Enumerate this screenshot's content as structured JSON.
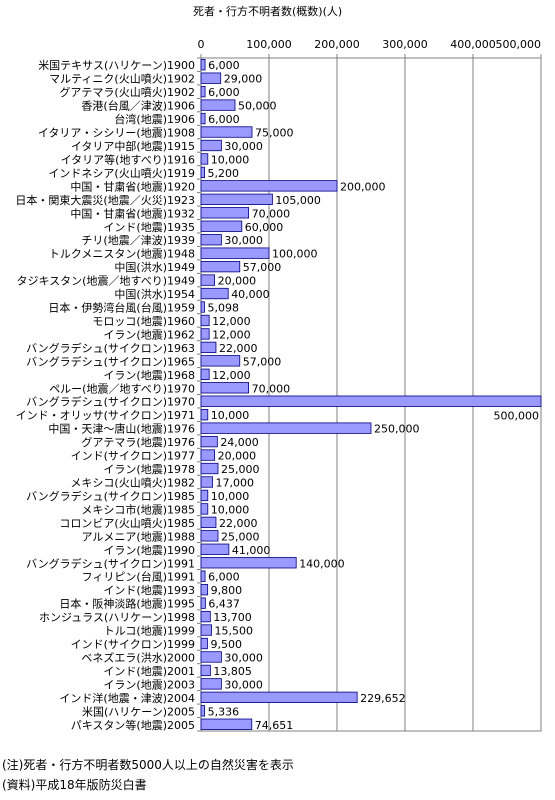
{
  "chart_data": {
    "type": "bar",
    "orientation": "horizontal",
    "title": "死者・行方不明者数(概数)(人)",
    "xlim": [
      0,
      500000
    ],
    "xticks": [
      0,
      100000,
      200000,
      300000,
      400000,
      500000
    ],
    "xtick_labels": [
      "0",
      "100,000",
      "200,000",
      "300,000",
      "400,000",
      "500,000"
    ],
    "grid": "vertical",
    "bar_color": "#9999ff",
    "categories": [
      "米国テキサス(ハリケーン)1900",
      "マルティニク(火山噴火)1902",
      "グアテマラ(火山噴火)1902",
      "香港(台風／津波)1906",
      "台湾(地震)1906",
      "イタリア・シシリー(地震)1908",
      "イタリア中部(地震)1915",
      "イタリア等(地すべり)1916",
      "インドネシア(火山噴火)1919",
      "中国・甘粛省(地震)1920",
      "日本・関東大震災(地震／火災)1923",
      "中国・甘粛省(地震)1932",
      "インド(地震)1935",
      "チリ(地震／津波)1939",
      "トルクメニスタン(地震)1948",
      "中国(洪水)1949",
      "タジキスタン(地震／地すべり)1949",
      "中国(洪水)1954",
      "日本・伊勢湾台風(台風)1959",
      "モロッコ(地震)1960",
      "イラン(地震)1962",
      "バングラデシュ(サイクロン)1963",
      "バングラデシュ(サイクロン)1965",
      "イラン(地震)1968",
      "ペルー(地震／地すべり)1970",
      "バングラデシュ(サイクロン)1970",
      "インド・オリッサ(サイクロン)1971",
      "中国・天津～唐山(地震)1976",
      "グアテマラ(地震)1976",
      "インド(サイクロン)1977",
      "イラン(地震)1978",
      "メキシコ(火山噴火)1982",
      "バングラデシュ(サイクロン)1985",
      "メキシコ市(地震)1985",
      "コロンビア(火山噴火)1985",
      "アルメニア(地震)1988",
      "イラン(地震)1990",
      "バングラデシュ(サイクロン)1991",
      "フィリピン(台風)1991",
      "インド(地震)1993",
      "日本・阪神淡路(地震)1995",
      "ホンジュラス(ハリケーン)1998",
      "トルコ(地震)1999",
      "インド(サイクロン)1999",
      "ベネズエラ(洪水)2000",
      "インド(地震)2001",
      "イラン(地震)2003",
      "インド洋(地震・津波)2004",
      "米国(ハリケーン)2005",
      "パキスタン等(地震)2005"
    ],
    "values": [
      6000,
      29000,
      6000,
      50000,
      6000,
      75000,
      30000,
      10000,
      5200,
      200000,
      105000,
      70000,
      60000,
      30000,
      100000,
      57000,
      20000,
      40000,
      5098,
      12000,
      12000,
      22000,
      57000,
      12000,
      70000,
      500000,
      10000,
      250000,
      24000,
      20000,
      25000,
      17000,
      10000,
      10000,
      22000,
      25000,
      41000,
      140000,
      6000,
      9800,
      6437,
      13700,
      15500,
      9500,
      30000,
      13805,
      30000,
      229652,
      5336,
      74651
    ],
    "value_labels": [
      "6,000",
      "29,000",
      "6,000",
      "50,000",
      "6,000",
      "75,000",
      "30,000",
      "10,000",
      "5,200",
      "200,000",
      "105,000",
      "70,000",
      "60,000",
      "30,000",
      "100,000",
      "57,000",
      "20,000",
      "40,000",
      "5,098",
      "12,000",
      "12,000",
      "22,000",
      "57,000",
      "12,000",
      "70,000",
      "500,000",
      "10,000",
      "250,000",
      "24,000",
      "20,000",
      "25,000",
      "17,000",
      "10,000",
      "10,000",
      "22,000",
      "25,000",
      "41,000",
      "140,000",
      "6,000",
      "9,800",
      "6,437",
      "13,700",
      "15,500",
      "9,500",
      "30,000",
      "13,805",
      "30,000",
      "229,652",
      "5,336",
      "74,651"
    ]
  },
  "notes": {
    "note1": "(注)死者・行方不明者数5000人以上の自然災害を表示",
    "note2": "(資料)平成18年版防災白書"
  }
}
